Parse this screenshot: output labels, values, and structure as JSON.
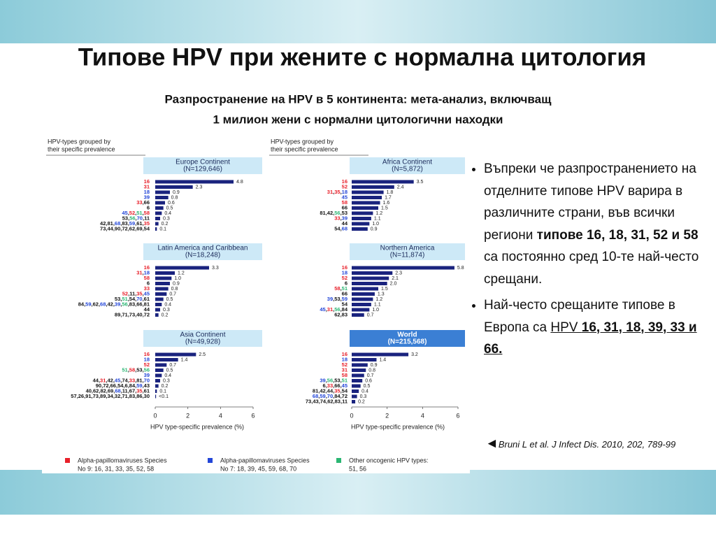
{
  "slide": {
    "title": "Типове HPV при жените с нормална цитология",
    "subtitle": [
      "Разпространение на HPV в 5 континента: мета-анализ, включващ",
      "1 милион жени с нормални цитологични находки"
    ],
    "bullets": [
      [
        {
          "text": "Въпреки че разпространението на отделните типове HPV варира в различните страни, във всички региони "
        },
        {
          "text": "типове 16, 18, 31, 52 и 58",
          "bold": true
        },
        {
          "text": " са постоянно сред 10-те най-често срещани."
        }
      ],
      [
        {
          "text": "Най-често срещаните типове в Европа са "
        },
        {
          "text": "HPV ",
          "underline": true
        },
        {
          "text": "16, 31, 18, 39, 33 и 66.",
          "bold": true,
          "underline": true
        }
      ]
    ],
    "reference": {
      "marker": "◄",
      "text": "Bruni L et al. J Infect Dis. 2010, 202, 789-99"
    }
  },
  "figure": {
    "header": [
      "HPV-types grouped by",
      "their specific prevalence"
    ],
    "legend": [
      {
        "name": "Alpha-papillomaviruses Species",
        "detail": "No 9: 16, 31, 33, 35, 52, 58",
        "color": "#e8202a"
      },
      {
        "name": "Alpha-papillomaviruses Species",
        "detail": "No 7: 18, 39, 45, 59, 68, 70",
        "color": "#2346d8"
      },
      {
        "name": "Other oncogenic HPV types:",
        "detail": "51, 56",
        "color": "#2bb673"
      }
    ]
  },
  "chart_data": [
    {
      "type": "bar",
      "orientation": "horizontal",
      "title": "Europe Continent",
      "subtitle": "(N=129,646)",
      "header_color": "#cde9f7",
      "title_color": "#1a2a5a",
      "color": "#1a237e",
      "xlim": [
        0,
        6
      ],
      "categories": [
        "16",
        "31",
        "18",
        "39",
        "33,66",
        "6",
        "45,52,51,58",
        "53,56,70,11",
        "42,81,68,83,59,61,35",
        "73,44,90,72,62,69,54"
      ],
      "values": [
        4.8,
        2.3,
        0.9,
        0.8,
        0.6,
        0.5,
        0.4,
        0.3,
        0.2,
        0.1
      ],
      "value_labels": [
        "4.8",
        "2.3",
        "0.9",
        "0.8",
        "0.6",
        "0.5",
        "0.4",
        "0.3",
        "0.2",
        "0.1"
      ]
    },
    {
      "type": "bar",
      "orientation": "horizontal",
      "title": "Africa Continent",
      "subtitle": "(N=5,872)",
      "header_color": "#cde9f7",
      "title_color": "#1a2a5a",
      "color": "#1a237e",
      "xlim": [
        0,
        6
      ],
      "categories": [
        "16",
        "52",
        "31,35,18",
        "45",
        "58",
        "66",
        "81,42,56,53",
        "33,39",
        "44",
        "54,68"
      ],
      "values": [
        3.5,
        2.4,
        1.8,
        1.7,
        1.6,
        1.5,
        1.2,
        1.1,
        1.0,
        0.9
      ],
      "value_labels": [
        "3.5",
        "2.4",
        "1.8",
        "1.7",
        "1.6",
        "1.5",
        "1.2",
        "1.1",
        "1.0",
        "0.9"
      ]
    },
    {
      "type": "bar",
      "orientation": "horizontal",
      "title": "Latin America and Caribbean",
      "subtitle": "(N=18,248)",
      "header_color": "#cde9f7",
      "title_color": "#1a2a5a",
      "color": "#1a237e",
      "xlim": [
        0,
        6
      ],
      "categories": [
        "16",
        "31,18",
        "58",
        "6",
        "33",
        "52,11,35,45",
        "53,51,54,70,61",
        "84,59,62,68,42,39,56,83,66,81",
        "44",
        "89,71,73,40,72"
      ],
      "values": [
        3.3,
        1.2,
        1.0,
        0.9,
        0.8,
        0.7,
        0.5,
        0.4,
        0.3,
        0.2
      ],
      "value_labels": [
        "3.3",
        "1.2",
        "1.0",
        "0.9",
        "0.8",
        "0.7",
        "0.5",
        "0.4",
        "0.3",
        "0.2"
      ]
    },
    {
      "type": "bar",
      "orientation": "horizontal",
      "title": "Northern America",
      "subtitle": "(N=11,874)",
      "header_color": "#cde9f7",
      "title_color": "#1a2a5a",
      "color": "#1a237e",
      "xlim": [
        0,
        6
      ],
      "categories": [
        "16",
        "18",
        "52",
        "6",
        "58,51",
        "66",
        "39,53,59",
        "54",
        "45,31,56,84",
        "62,83"
      ],
      "values": [
        5.8,
        2.3,
        2.1,
        2.0,
        1.5,
        1.3,
        1.2,
        1.1,
        1.0,
        0.7
      ],
      "value_labels": [
        "5.8",
        "2.3",
        "2.1",
        "2.0",
        "1.5",
        "1.3",
        "1.2",
        "1.1",
        "1.0",
        "0.7"
      ]
    },
    {
      "type": "bar",
      "orientation": "horizontal",
      "title": "Asia Continent",
      "subtitle": "(N=49,928)",
      "header_color": "#cde9f7",
      "title_color": "#1a2a5a",
      "color": "#1a237e",
      "xlim": [
        0,
        6
      ],
      "xticks": [
        0,
        2,
        4,
        6
      ],
      "xlabel": "HPV type-specific prevalence (%)",
      "categories": [
        "16",
        "18",
        "52",
        "51,58,53,56",
        "39",
        "44,31,42,45,74,33,81,70",
        "90,72,66,54,6,84,59,43",
        "40,62,82,69,68,11,67,35,61",
        "57,26,91,73,89,34,32,71,83,86,30"
      ],
      "values": [
        2.5,
        1.4,
        0.7,
        0.5,
        0.4,
        0.3,
        0.2,
        0.1,
        0.05
      ],
      "value_labels": [
        "2.5",
        "1.4",
        "0.7",
        "0.5",
        "0.4",
        "0.3",
        "0.2",
        "0.1",
        "<0.1"
      ]
    },
    {
      "type": "bar",
      "orientation": "horizontal",
      "title": "World",
      "subtitle": "(N=215,568)",
      "header_color": "#3b7fd4",
      "title_color": "#ffffff",
      "color": "#1a237e",
      "xlim": [
        0,
        6
      ],
      "xticks": [
        0,
        2,
        4,
        6
      ],
      "xlabel": "HPV type-specific prevalence (%)",
      "categories": [
        "16",
        "18",
        "52",
        "31",
        "58",
        "39,56,53,51",
        "6,33,66,45",
        "81,42,44,35,54",
        "68,59,70,84,72",
        "73,43,74,62,83,11"
      ],
      "values": [
        3.2,
        1.4,
        0.9,
        0.8,
        0.7,
        0.6,
        0.5,
        0.4,
        0.3,
        0.2
      ],
      "value_labels": [
        "3.2",
        "1.4",
        "0.9",
        "0.8",
        "0.7",
        "0.6",
        "0.5",
        "0.4",
        "0.3",
        "0.2"
      ]
    }
  ]
}
